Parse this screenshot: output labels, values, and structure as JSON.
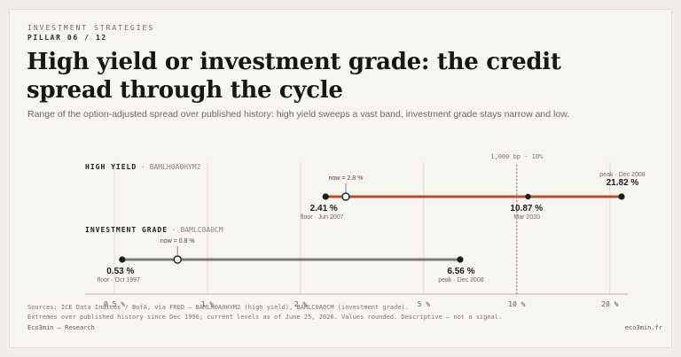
{
  "header": {
    "kicker": "INVESTMENT STRATEGIES",
    "pillar": "PILLAR 06 / 12",
    "title": "High yield or investment grade: the credit spread through the cycle",
    "subtitle": "Range of the option-adjusted spread over published history: high yield sweeps a vast band, investment grade stays narrow and low."
  },
  "chart_data": {
    "type": "range",
    "scale": "log",
    "xlim": [
      0.4,
      25
    ],
    "ticks": [
      {
        "value": 0.5,
        "label": "0.5 %"
      },
      {
        "value": 1,
        "label": "1 %"
      },
      {
        "value": 2,
        "label": "2 %"
      },
      {
        "value": 5,
        "label": "5 %"
      },
      {
        "value": 10,
        "label": "10 %"
      },
      {
        "value": 20,
        "label": "20 %"
      }
    ],
    "reference_line": {
      "value": 10,
      "label": "1,000 bp · 10%"
    },
    "series": [
      {
        "name": "HIGH YIELD",
        "code": "BAMLH0A0HYM2",
        "color": "#b5502f",
        "min": {
          "value": 2.41,
          "label": "2.41 %",
          "note": "floor · Jun 2007"
        },
        "max": {
          "value": 21.82,
          "label": "21.82 %",
          "note": "peak · Dec 2008"
        },
        "now": {
          "value": 2.8,
          "label": "now = 2.8 %"
        },
        "marker": {
          "value": 10.87,
          "label": "10.87 %",
          "note": "Mar 2020"
        }
      },
      {
        "name": "INVESTMENT GRADE",
        "code": "BAMLC0A0CM",
        "color": "#7b7a76",
        "min": {
          "value": 0.53,
          "label": "0.53 %",
          "note": "floor · Oct 1997"
        },
        "max": {
          "value": 6.56,
          "label": "6.56 %",
          "note": "peak · Dec 2008"
        },
        "now": {
          "value": 0.8,
          "label": "now = 0.8 %"
        }
      }
    ]
  },
  "footer": {
    "sources": "Sources: ICE Data Indices / BofA, via FRED — BAMLH0A0HYM2 (high yield), BAMLC0A0CM (investment grade).",
    "notes": "Extremes over published history since Dec 1996; current levels as of June 25, 2026. Values rounded. Descriptive — not a signal.",
    "brand": "Eco3min — Research",
    "site": "eco3min.fr"
  }
}
